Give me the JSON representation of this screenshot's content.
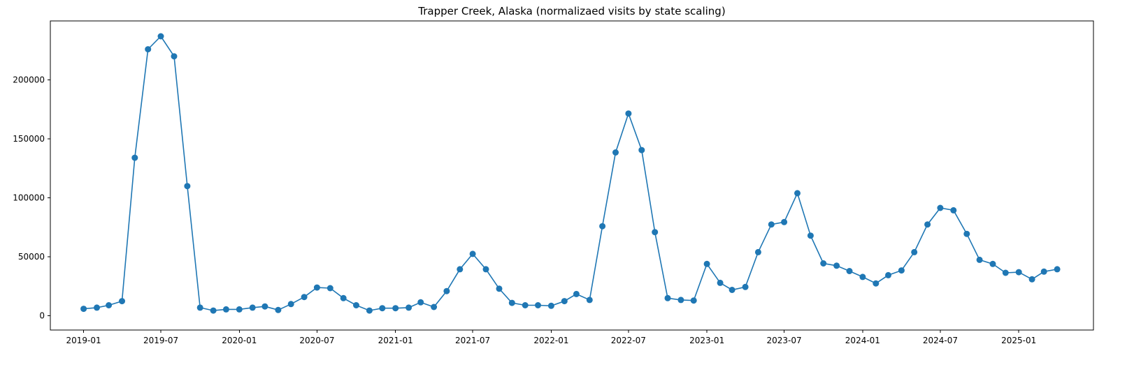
{
  "chart_data": {
    "type": "line",
    "title": "Trapper Creek, Alaska (normalizaed visits by state scaling)",
    "xlabel": "",
    "ylabel": "",
    "ylim": [
      -12000,
      250000
    ],
    "xlim": [
      "2018-10-15",
      "2025-06-25"
    ],
    "grid": false,
    "markers": true,
    "color": "#1f77b4",
    "x_ticks": [
      "2019-01",
      "2019-07",
      "2020-01",
      "2020-07",
      "2021-01",
      "2021-07",
      "2022-01",
      "2022-07",
      "2023-01",
      "2023-07",
      "2024-01",
      "2024-07",
      "2025-01"
    ],
    "y_ticks": [
      0,
      50000,
      100000,
      150000,
      200000
    ],
    "series": [
      {
        "x": [
          "2019-01-01",
          "2019-02-01",
          "2019-03-01",
          "2019-04-01",
          "2019-05-01",
          "2019-06-01",
          "2019-07-01",
          "2019-08-01",
          "2019-09-01",
          "2019-10-01",
          "2019-11-01",
          "2019-12-01",
          "2020-01-01",
          "2020-02-01",
          "2020-03-01",
          "2020-04-01",
          "2020-05-01",
          "2020-06-01",
          "2020-07-01",
          "2020-08-01",
          "2020-09-01",
          "2020-10-01",
          "2020-11-01",
          "2020-12-01",
          "2021-01-01",
          "2021-02-01",
          "2021-03-01",
          "2021-04-01",
          "2021-05-01",
          "2021-06-01",
          "2021-07-01",
          "2021-08-01",
          "2021-09-01",
          "2021-10-01",
          "2021-11-01",
          "2021-12-01",
          "2022-01-01",
          "2022-02-01",
          "2022-03-01",
          "2022-04-01",
          "2022-05-01",
          "2022-06-01",
          "2022-07-01",
          "2022-08-01",
          "2022-09-01",
          "2022-10-01",
          "2022-11-01",
          "2022-12-01",
          "2023-01-01",
          "2023-02-01",
          "2023-03-01",
          "2023-04-01",
          "2023-05-01",
          "2023-06-01",
          "2023-07-01",
          "2023-08-01",
          "2023-09-01",
          "2023-10-01",
          "2023-11-01",
          "2023-12-01",
          "2024-01-01",
          "2024-02-01",
          "2024-03-01",
          "2024-04-01",
          "2024-05-01",
          "2024-06-01",
          "2024-07-01",
          "2024-08-01",
          "2024-09-01",
          "2024-10-01",
          "2024-11-01",
          "2024-12-01",
          "2025-01-01",
          "2025-02-01",
          "2025-03-01",
          "2025-04-01"
        ],
        "y": [
          6000,
          7000,
          9000,
          12500,
          134000,
          226000,
          237000,
          220000,
          110000,
          7000,
          4500,
          5500,
          5500,
          7000,
          8000,
          5000,
          10000,
          16000,
          24000,
          23500,
          15000,
          9000,
          4500,
          6500,
          6500,
          7000,
          11500,
          7500,
          21000,
          39500,
          52500,
          39500,
          23000,
          11000,
          9000,
          9000,
          8500,
          12500,
          18500,
          13500,
          76000,
          138500,
          171500,
          140500,
          71000,
          15000,
          13500,
          13000,
          44000,
          28000,
          22000,
          24500,
          54000,
          77500,
          79500,
          104000,
          68000,
          44500,
          42500,
          38000,
          33000,
          27500,
          34500,
          38500,
          54000,
          77500,
          91500,
          89500,
          69500,
          47500,
          44000,
          36500,
          37000,
          31000,
          37500,
          39500
        ]
      }
    ]
  }
}
